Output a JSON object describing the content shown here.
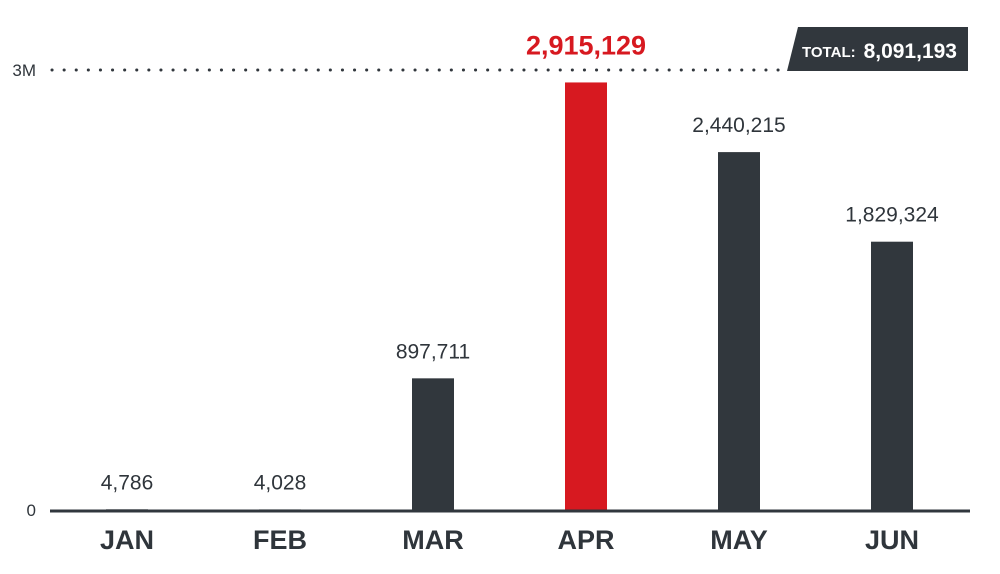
{
  "chart_data": {
    "type": "bar",
    "categories": [
      "JAN",
      "FEB",
      "MAR",
      "APR",
      "MAY",
      "JUN"
    ],
    "values": [
      4786,
      4028,
      897711,
      2915129,
      2440215,
      1829324
    ],
    "value_labels": [
      "4,786",
      "4,028",
      "897,711",
      "2,915,129",
      "2,440,215",
      "1,829,324"
    ],
    "highlight_index": 3,
    "ylim": [
      0,
      3000000
    ],
    "yticks": [
      {
        "value": 0,
        "label": "0"
      },
      {
        "value": 3000000,
        "label": "3M"
      }
    ],
    "grid": false,
    "total": {
      "label": "TOTAL:",
      "value": "8,091,193"
    }
  },
  "colors": {
    "bar": "#31373d",
    "highlight": "#d71920",
    "text": "#2f353b",
    "axis": "#31373d",
    "total_bg": "#31373d",
    "reference_line": "#31373d"
  }
}
